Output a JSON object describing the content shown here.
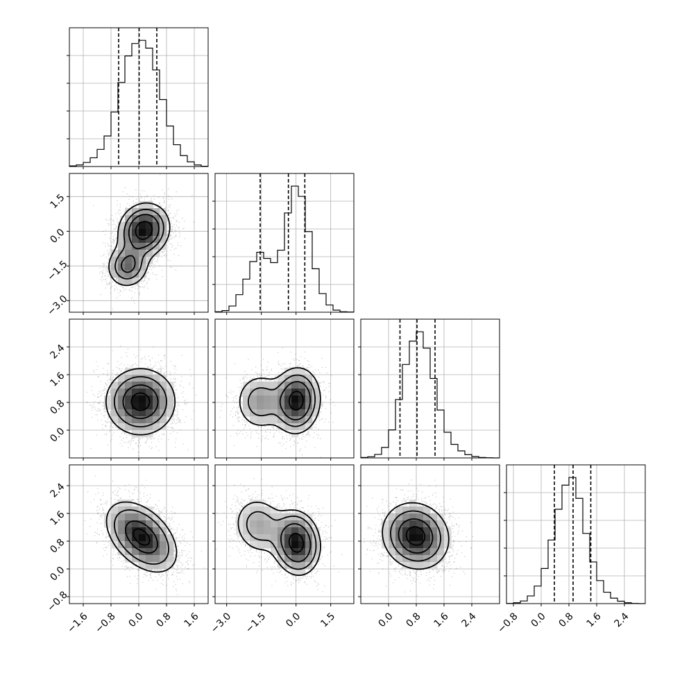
{
  "chart_data": {
    "type": "corner",
    "parameters": [
      {
        "index": 0,
        "range": [
          -2.0,
          2.0
        ],
        "ticks": [
          -1.6,
          -0.8,
          0.0,
          0.8,
          1.6
        ],
        "tick_labels": [
          "−1.6",
          "−0.8",
          "0.0",
          "0.8",
          "1.6"
        ],
        "quantiles": [
          -0.58,
          0.01,
          0.52
        ]
      },
      {
        "index": 1,
        "range": [
          -3.5,
          2.5
        ],
        "ticks": [
          -3.0,
          -1.5,
          0.0,
          1.5
        ],
        "tick_labels": [
          "−3.0",
          "−1.5",
          "0.0",
          "1.5"
        ],
        "quantiles": [
          -1.55,
          -0.33,
          0.38
        ]
      },
      {
        "index": 2,
        "range": [
          -0.8,
          3.2
        ],
        "ticks": [
          0.0,
          0.8,
          1.6,
          2.4
        ],
        "tick_labels": [
          "0.0",
          "0.8",
          "1.6",
          "2.4"
        ],
        "quantiles": [
          0.33,
          0.82,
          1.34
        ]
      },
      {
        "index": 3,
        "range": [
          -1.0,
          3.0
        ],
        "ticks": [
          -0.8,
          0.0,
          0.8,
          1.6,
          2.4
        ],
        "tick_labels": [
          "−0.8",
          "0.0",
          "0.8",
          "1.6",
          "2.4"
        ],
        "quantiles": [
          0.38,
          0.92,
          1.43
        ]
      }
    ],
    "histograms": [
      {
        "param": 0,
        "bin_edges": [
          -2.0,
          -1.8,
          -1.6,
          -1.4,
          -1.2,
          -1.0,
          -0.8,
          -0.6,
          -0.4,
          -0.2,
          0.0,
          0.2,
          0.4,
          0.6,
          0.8,
          1.0,
          1.2,
          1.4,
          1.6,
          1.8,
          2.0
        ],
        "counts": [
          2,
          5,
          13,
          28,
          55,
          98,
          175,
          270,
          355,
          395,
          405,
          380,
          310,
          215,
          130,
          70,
          35,
          15,
          5,
          1
        ]
      },
      {
        "param": 1,
        "bin_edges": [
          -3.5,
          -3.2,
          -2.9,
          -2.6,
          -2.3,
          -2.0,
          -1.7,
          -1.4,
          -1.1,
          -0.8,
          -0.5,
          -0.2,
          0.1,
          0.4,
          0.7,
          1.0,
          1.3,
          1.6,
          1.9,
          2.2,
          2.5
        ],
        "counts": [
          2,
          8,
          30,
          85,
          160,
          245,
          290,
          260,
          240,
          300,
          480,
          610,
          560,
          390,
          210,
          90,
          35,
          10,
          2,
          1
        ]
      },
      {
        "param": 2,
        "bin_edges": [
          -0.8,
          -0.6,
          -0.4,
          -0.2,
          0.0,
          0.2,
          0.4,
          0.6,
          0.8,
          1.0,
          1.2,
          1.4,
          1.6,
          1.8,
          2.0,
          2.2,
          2.4,
          2.6,
          2.8,
          3.0,
          3.2
        ],
        "counts": [
          2,
          5,
          15,
          45,
          120,
          250,
          400,
          500,
          540,
          470,
          340,
          205,
          110,
          58,
          30,
          14,
          6,
          2,
          1,
          0
        ]
      },
      {
        "param": 3,
        "bin_edges": [
          -1.0,
          -0.8,
          -0.6,
          -0.4,
          -0.2,
          0.0,
          0.2,
          0.4,
          0.6,
          0.8,
          1.0,
          1.2,
          1.4,
          1.6,
          1.8,
          2.0,
          2.2,
          2.4,
          2.6,
          2.8,
          3.0
        ],
        "counts": [
          1,
          4,
          12,
          35,
          80,
          160,
          290,
          430,
          540,
          575,
          480,
          320,
          190,
          105,
          52,
          25,
          11,
          4,
          1,
          0
        ]
      }
    ],
    "joint_components": {
      "1,0": [
        {
          "w": 0.7,
          "mx": 0.15,
          "my": 0.05,
          "sx": 0.38,
          "sy": 0.6,
          "rho": 0.1
        },
        {
          "w": 0.3,
          "mx": -0.32,
          "my": -1.5,
          "sx": 0.32,
          "sy": 0.5,
          "rho": 0.05
        }
      ],
      "2,0": [
        {
          "w": 1.0,
          "mx": 0.05,
          "my": 0.82,
          "sx": 0.5,
          "sy": 0.48,
          "rho": 0.0
        }
      ],
      "2,1": [
        {
          "w": 0.7,
          "mx": 0.02,
          "my": 0.85,
          "sx": 0.5,
          "sy": 0.46,
          "rho": 0.05
        },
        {
          "w": 0.3,
          "mx": -1.55,
          "my": 0.82,
          "sx": 0.55,
          "sy": 0.42,
          "rho": 0.0
        }
      ],
      "3,0": [
        {
          "w": 1.0,
          "mx": 0.08,
          "my": 0.92,
          "sx": 0.5,
          "sy": 0.5,
          "rho": -0.45
        }
      ],
      "3,1": [
        {
          "w": 0.7,
          "mx": 0.02,
          "my": 0.75,
          "sx": 0.5,
          "sy": 0.45,
          "rho": -0.1
        },
        {
          "w": 0.3,
          "mx": -1.6,
          "my": 1.25,
          "sx": 0.6,
          "sy": 0.45,
          "rho": -0.1
        }
      ],
      "3,2": [
        {
          "w": 1.0,
          "mx": 0.78,
          "my": 0.95,
          "sx": 0.48,
          "sy": 0.48,
          "rho": -0.1
        }
      ]
    },
    "contour_levels_sigma": [
      0.5,
      1.0,
      1.5,
      2.0
    ],
    "grid": true,
    "title": "",
    "xlabel": "",
    "ylabel": ""
  }
}
